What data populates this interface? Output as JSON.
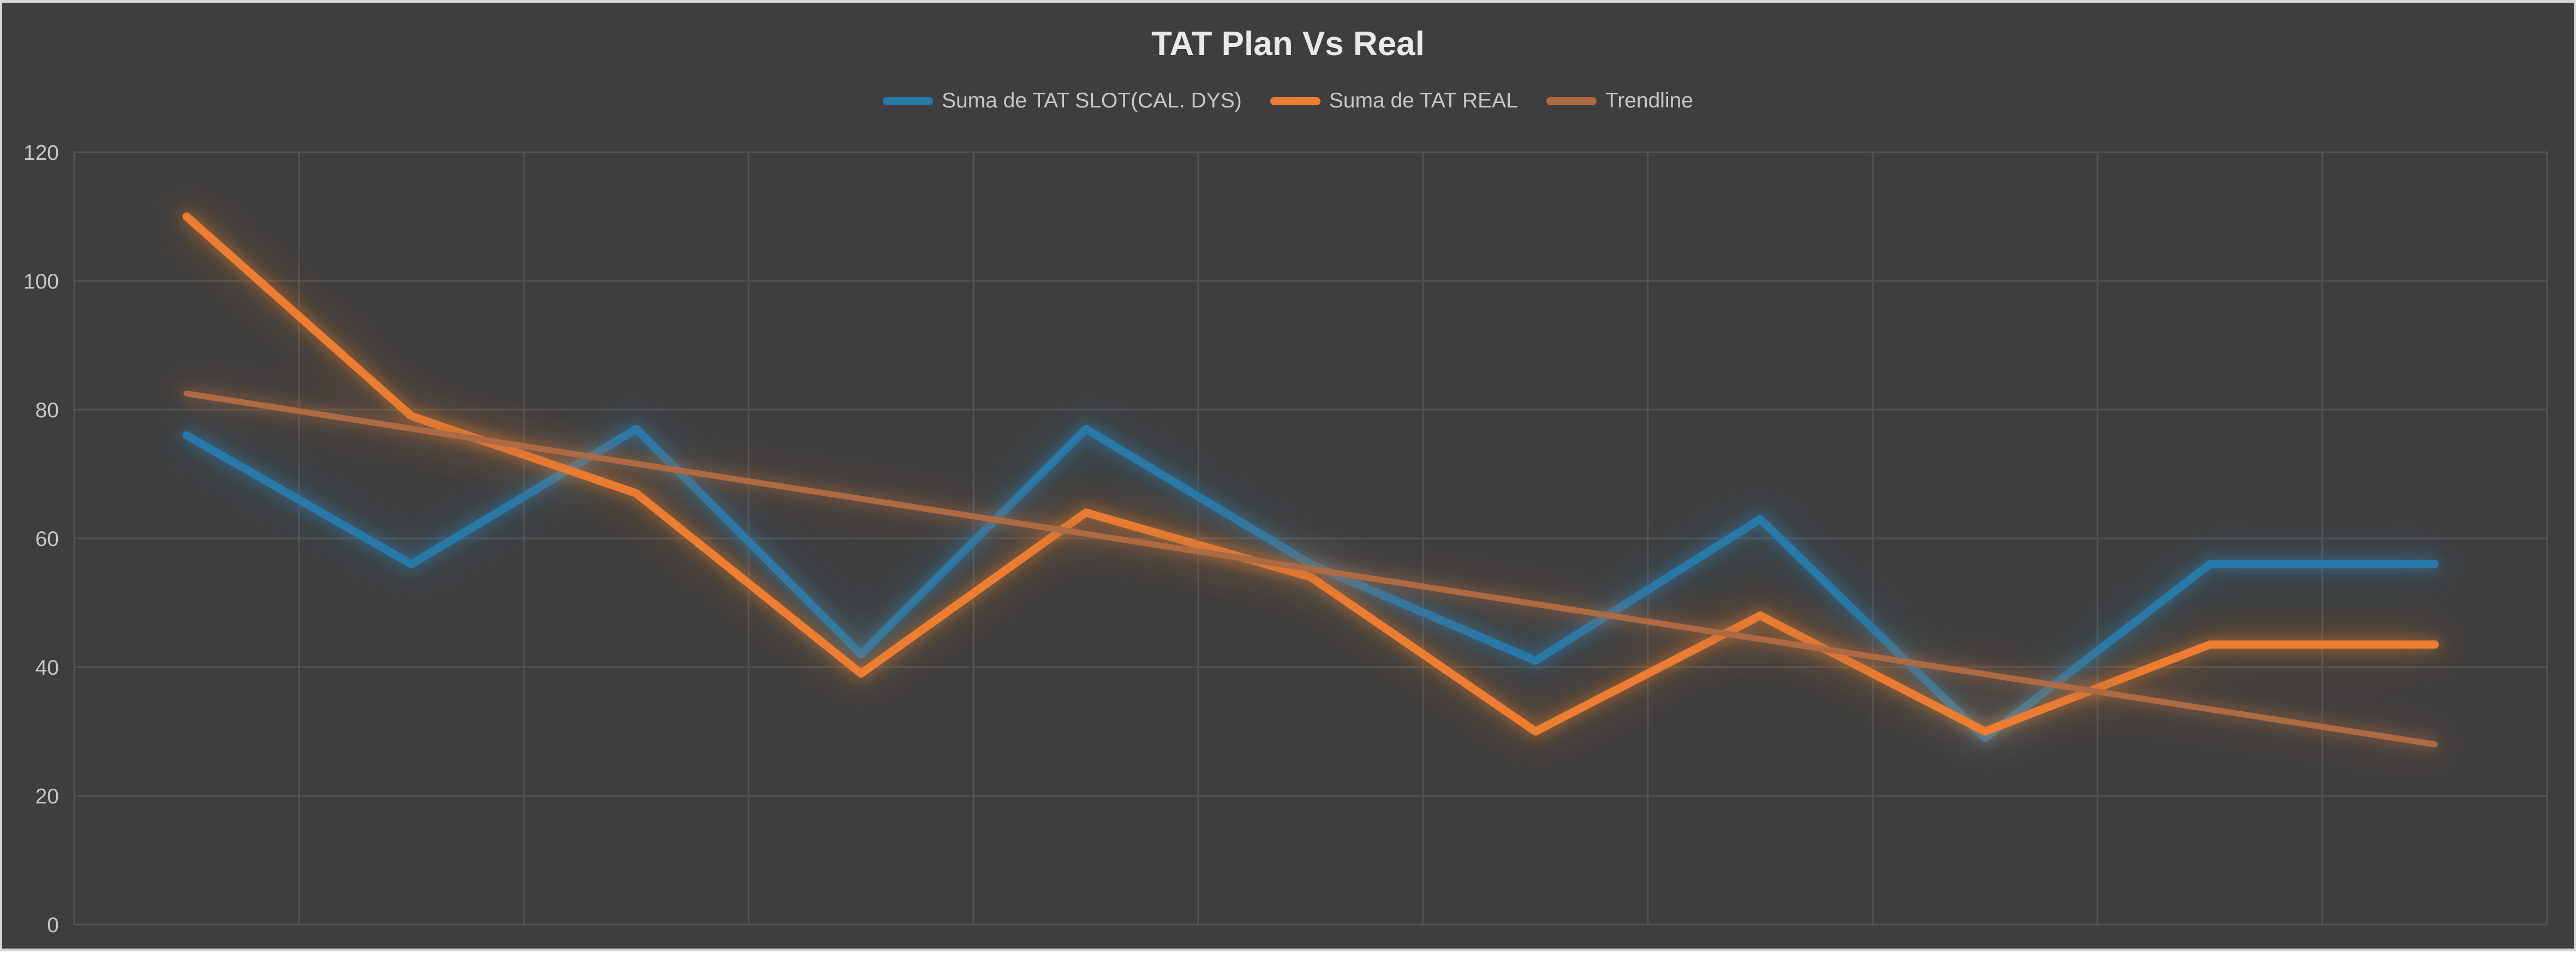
{
  "window": {
    "frame_color": "#D5D5D5",
    "background_color": "#3E3E3E"
  },
  "chart": {
    "title": "TAT Plan Vs Real",
    "title_color": "#E9E9E9",
    "text_color": "#C7C7C7",
    "gridline_color": "#525252"
  },
  "legend": {
    "items": [
      {
        "label": "Suma de TAT SLOT(CAL. DYS)",
        "color": "#2878A8",
        "series_key": "tat-slot"
      },
      {
        "label": "Suma de TAT REAL",
        "color": "#ED7D31",
        "series_key": "tat-real"
      },
      {
        "label": "Trendline",
        "color": "#AE6A43",
        "series_key": "trendline"
      }
    ]
  },
  "y_axis": {
    "ticks": [
      120,
      100,
      80,
      60,
      40,
      20,
      0
    ],
    "label_color": "#C7C7C7"
  },
  "chart_data": {
    "type": "line",
    "title": "TAT Plan Vs Real",
    "x": [
      1,
      2,
      3,
      4,
      5,
      6,
      7,
      8,
      9,
      10,
      11
    ],
    "x_tick_labels_visible": false,
    "ylim": [
      0,
      120
    ],
    "y_gridline_step": 20,
    "vertical_columns": 11,
    "grid": true,
    "legend_position": "top",
    "series": [
      {
        "name": "Suma de TAT SLOT(CAL. DYS)",
        "key": "tat-slot",
        "color": "#2878A8",
        "glow_color": "#2E8BC5",
        "values": [
          76,
          56,
          77,
          42,
          77,
          56,
          41,
          63,
          29,
          56,
          56
        ]
      },
      {
        "name": "Suma de TAT REAL",
        "key": "tat-real",
        "color": "#ED7D31",
        "glow_color": "#F58427",
        "values": [
          110,
          79,
          67,
          39,
          64,
          54,
          30,
          48,
          30,
          43.5,
          43.5
        ]
      }
    ],
    "trendline": {
      "name": "Trendline",
      "key": "trendline",
      "color": "#AE6A43",
      "glow_color": "#AE6A43",
      "start_value": 82.5,
      "end_value": 28
    }
  }
}
